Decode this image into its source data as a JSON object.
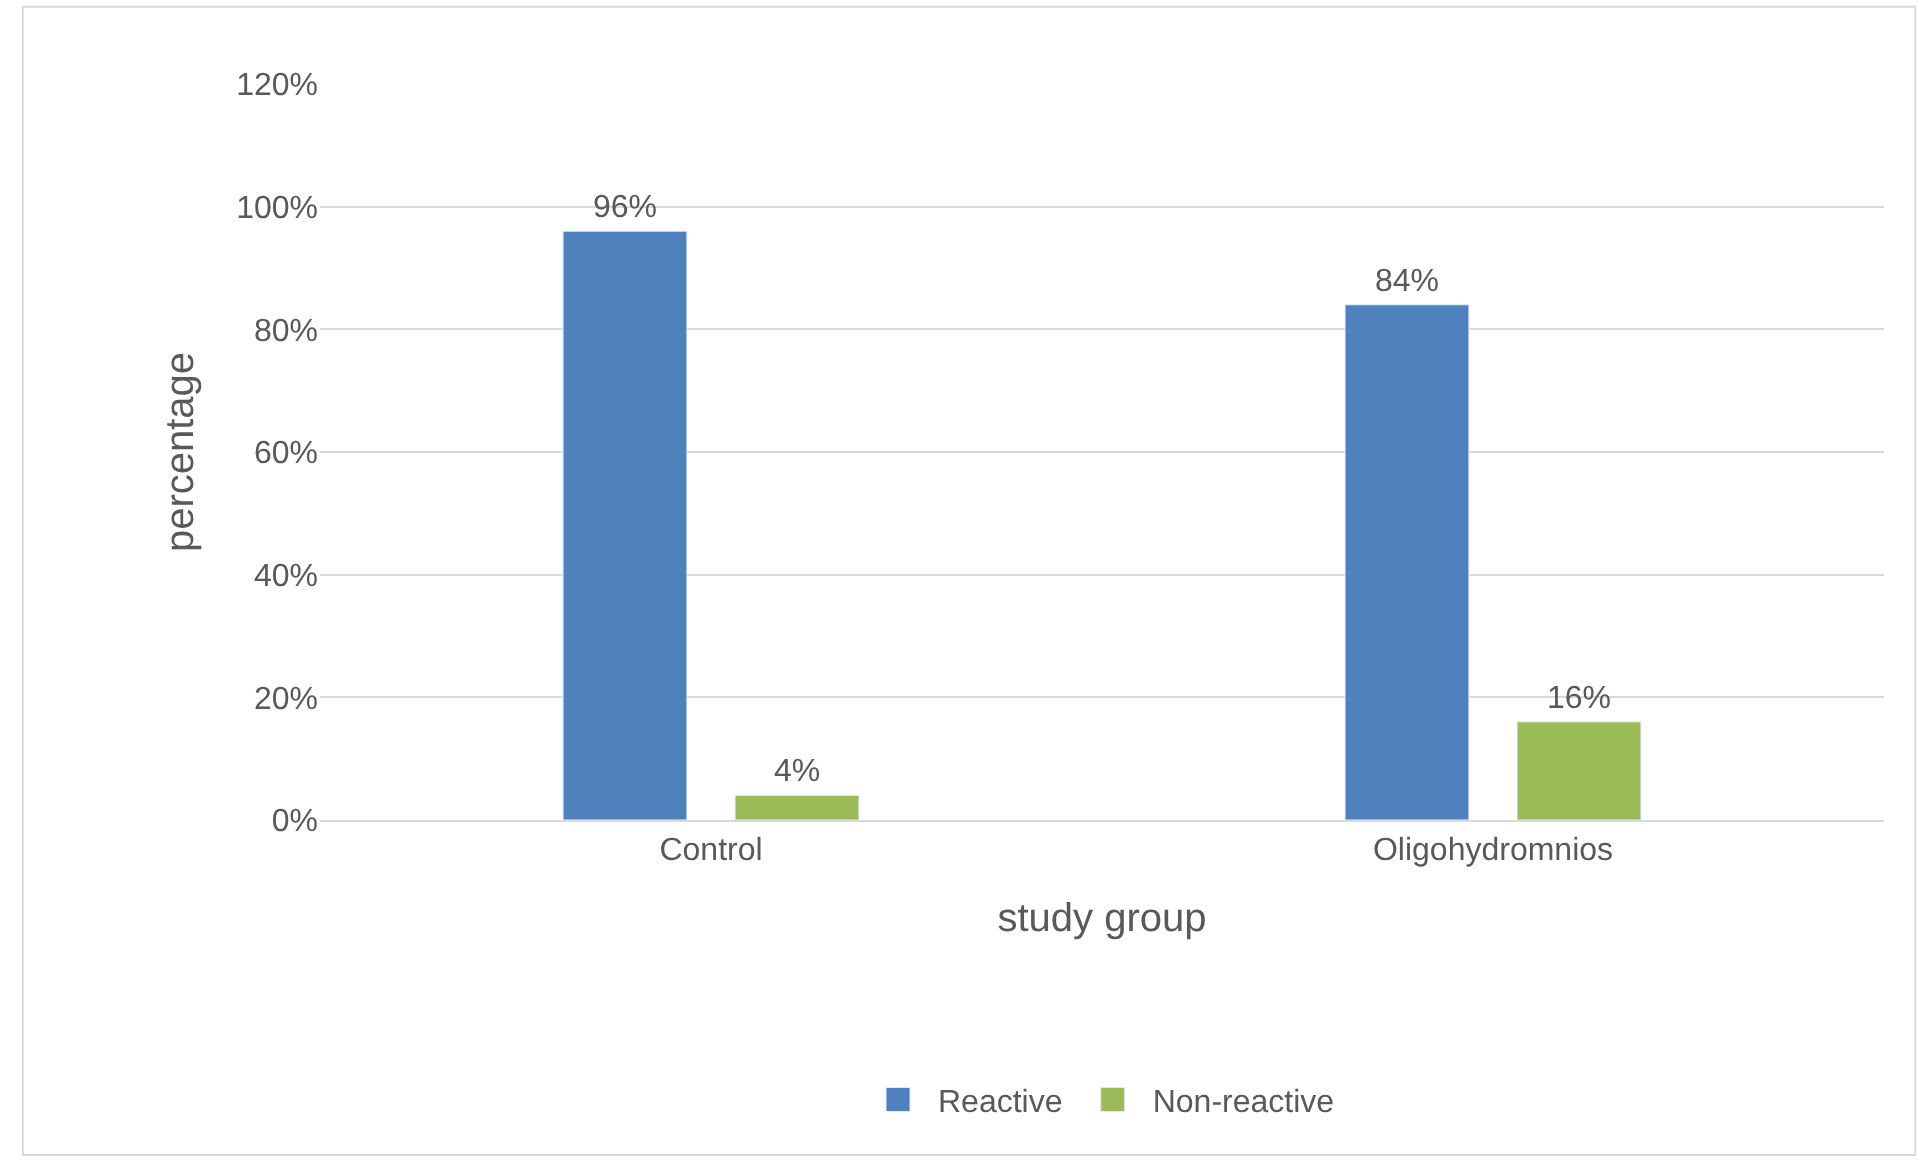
{
  "chart_data": {
    "type": "bar",
    "xlabel": "study group",
    "ylabel": "percentage",
    "categories": [
      "Control",
      "Oligohydromnios"
    ],
    "series": [
      {
        "name": "Reactive",
        "color": "#4f81bd",
        "values": [
          96,
          84
        ],
        "value_labels": [
          "96%",
          "84%"
        ]
      },
      {
        "name": "Non-reactive",
        "color": "#9bbb59",
        "values": [
          4,
          16
        ],
        "value_labels": [
          "4%",
          "16%"
        ]
      }
    ],
    "ylim": [
      0,
      120
    ],
    "yticks": [
      {
        "value": 0,
        "label": "0%"
      },
      {
        "value": 20,
        "label": "20%"
      },
      {
        "value": 40,
        "label": "40%"
      },
      {
        "value": 60,
        "label": "60%"
      },
      {
        "value": 80,
        "label": "80%"
      },
      {
        "value": 100,
        "label": "100%"
      },
      {
        "value": 120,
        "label": "120%"
      }
    ],
    "grid": "y",
    "legend": "bottom"
  }
}
